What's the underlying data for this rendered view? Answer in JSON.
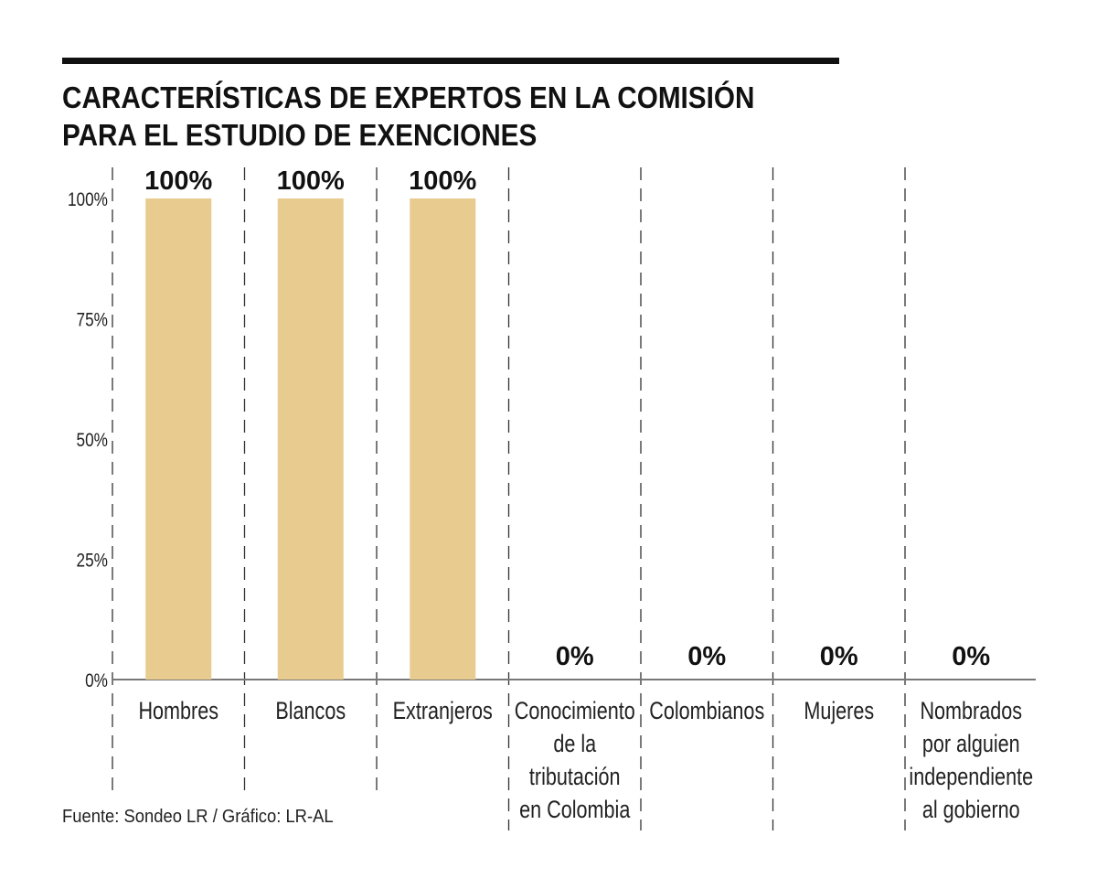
{
  "header": {
    "title_lines": [
      "CARACTERÍSTICAS DE EXPERTOS EN LA COMISIÓN",
      "PARA EL ESTUDIO DE EXENCIONES"
    ]
  },
  "source": "Fuente: Sondeo LR / Gráfico: LR-AL",
  "chart_data": {
    "type": "bar",
    "title": "CARACTERÍSTICAS DE EXPERTOS EN LA COMISIÓN PARA EL ESTUDIO DE EXENCIONES",
    "categories": [
      [
        "Hombres"
      ],
      [
        "Blancos"
      ],
      [
        "Extranjeros"
      ],
      [
        "Conocimiento",
        "de la",
        "tributación",
        "en Colombia"
      ],
      [
        "Colombianos"
      ],
      [
        "Mujeres"
      ],
      [
        "Nombrados",
        "por alguien",
        "independiente",
        "al gobierno"
      ]
    ],
    "values": [
      100,
      100,
      100,
      0,
      0,
      0,
      0
    ],
    "data_labels": [
      "100%",
      "100%",
      "100%",
      "0%",
      "0%",
      "0%",
      "0%"
    ],
    "yticks": [
      0,
      25,
      50,
      75,
      100
    ],
    "ytick_labels": [
      "0%",
      "25%",
      "50%",
      "75%",
      "100%"
    ],
    "ylim": [
      0,
      100
    ],
    "xlabel": "",
    "ylabel": "",
    "bar_color": "#e8cb8f",
    "grid": "dashed vertical separators",
    "legend": "none"
  }
}
